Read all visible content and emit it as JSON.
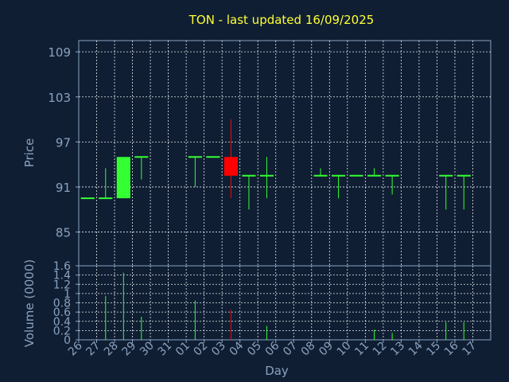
{
  "title": "TON - last updated 16/09/2025",
  "colors": {
    "background": "#0f1e33",
    "up": "#33ff33",
    "down": "#ff0000",
    "text": "#8aa2bf",
    "title": "#ffff33",
    "grid": "#ffffff"
  },
  "chart_data": [
    {
      "type": "candlestick",
      "ylabel": "Price",
      "ylim": [
        80.5,
        110.5
      ],
      "yticks": [
        85,
        91,
        97,
        103,
        109
      ],
      "grid": true,
      "days": [
        "26",
        "27",
        "28",
        "29",
        "30",
        "31",
        "01",
        "02",
        "03",
        "04",
        "05",
        "06",
        "07",
        "08",
        "09",
        "10",
        "11",
        "12",
        "13",
        "14",
        "15",
        "16",
        "17"
      ],
      "candles": [
        {
          "day": "26",
          "open": 89.5,
          "high": 89.5,
          "low": 89.5,
          "close": 89.5
        },
        {
          "day": "27",
          "open": 89.5,
          "high": 93.5,
          "low": 89.5,
          "close": 89.5
        },
        {
          "day": "28",
          "open": 89.5,
          "high": 95.0,
          "low": 89.5,
          "close": 95.0
        },
        {
          "day": "29",
          "open": 95.0,
          "high": 95.0,
          "low": 92.0,
          "close": 95.0
        },
        {
          "day": "01",
          "open": 95.0,
          "high": 95.0,
          "low": 91.0,
          "close": 95.0
        },
        {
          "day": "02",
          "open": 95.0,
          "high": 95.0,
          "low": 95.0,
          "close": 95.0
        },
        {
          "day": "03",
          "open": 95.0,
          "high": 100.0,
          "low": 89.5,
          "close": 92.5
        },
        {
          "day": "04",
          "open": 92.5,
          "high": 92.5,
          "low": 88.0,
          "close": 92.5
        },
        {
          "day": "05",
          "open": 92.5,
          "high": 95.0,
          "low": 89.5,
          "close": 92.5
        },
        {
          "day": "08",
          "open": 92.5,
          "high": 93.5,
          "low": 92.5,
          "close": 92.5
        },
        {
          "day": "09",
          "open": 92.5,
          "high": 92.5,
          "low": 89.5,
          "close": 92.5
        },
        {
          "day": "10",
          "open": 92.5,
          "high": 92.5,
          "low": 92.5,
          "close": 92.5
        },
        {
          "day": "11",
          "open": 92.5,
          "high": 93.5,
          "low": 92.5,
          "close": 92.5
        },
        {
          "day": "12",
          "open": 92.5,
          "high": 92.5,
          "low": 90.0,
          "close": 92.5
        },
        {
          "day": "15",
          "open": 92.5,
          "high": 92.5,
          "low": 88.0,
          "close": 92.5
        },
        {
          "day": "16",
          "open": 92.5,
          "high": 92.5,
          "low": 88.0,
          "close": 92.5
        }
      ]
    },
    {
      "type": "bar",
      "xlabel": "Day",
      "ylabel": "Volume (0000)",
      "ylim": [
        0,
        1.6
      ],
      "yticks": [
        0,
        0.2,
        0.4,
        0.6,
        0.8,
        1,
        1.2,
        1.4,
        1.6
      ],
      "grid": true,
      "bars": [
        {
          "day": "27",
          "value": 0.95,
          "color": "up"
        },
        {
          "day": "28",
          "value": 1.45,
          "color": "up"
        },
        {
          "day": "29",
          "value": 0.5,
          "color": "up"
        },
        {
          "day": "01",
          "value": 0.85,
          "color": "up"
        },
        {
          "day": "03",
          "value": 0.65,
          "color": "down"
        },
        {
          "day": "05",
          "value": 0.3,
          "color": "up"
        },
        {
          "day": "11",
          "value": 0.22,
          "color": "up"
        },
        {
          "day": "12",
          "value": 0.15,
          "color": "up"
        },
        {
          "day": "15",
          "value": 0.38,
          "color": "up"
        },
        {
          "day": "16",
          "value": 0.38,
          "color": "up"
        }
      ]
    }
  ]
}
